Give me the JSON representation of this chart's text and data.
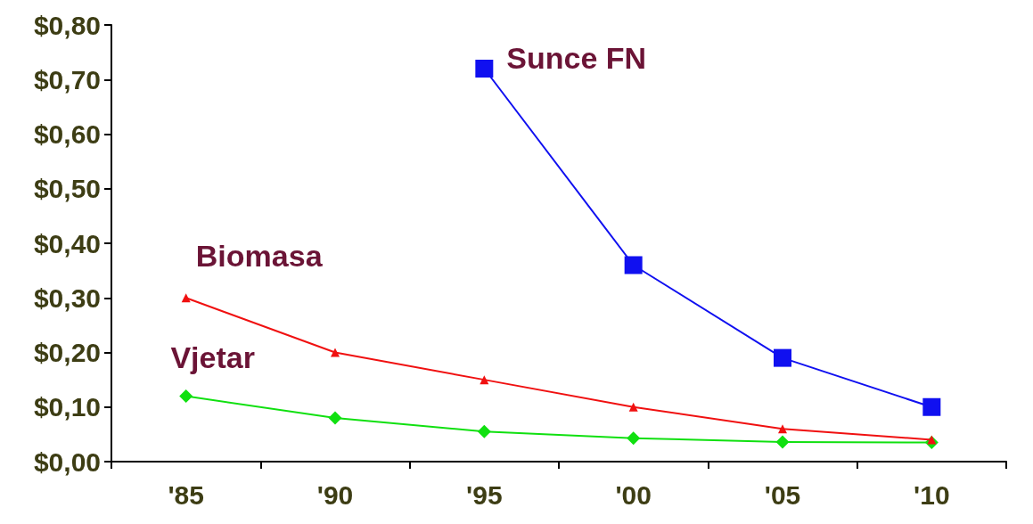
{
  "chart_data": {
    "type": "line",
    "categories": [
      "'85",
      "'90",
      "'95",
      "'00",
      "'05",
      "'10"
    ],
    "series": [
      {
        "name": "Sunce FN",
        "color": "#1010f0",
        "marker": "square",
        "values": [
          null,
          null,
          0.72,
          0.36,
          0.19,
          0.1
        ]
      },
      {
        "name": "Biomasa",
        "color": "#f01010",
        "marker": "triangle",
        "values": [
          0.3,
          0.2,
          0.15,
          0.1,
          0.06,
          0.04
        ]
      },
      {
        "name": "Vjetar",
        "color": "#10e010",
        "marker": "diamond",
        "values": [
          0.12,
          0.08,
          0.055,
          0.043,
          0.036,
          0.035
        ]
      }
    ],
    "ylim": [
      0,
      0.8
    ],
    "yticks": [
      {
        "value": 0,
        "label": "$0,00"
      },
      {
        "value": 0.1,
        "label": "$0,10"
      },
      {
        "value": 0.2,
        "label": "$0,20"
      },
      {
        "value": 0.3,
        "label": "$0,30"
      },
      {
        "value": 0.4,
        "label": "$0,40"
      },
      {
        "value": 0.5,
        "label": "$0,50"
      },
      {
        "value": 0.6,
        "label": "$0,60"
      },
      {
        "value": 0.7,
        "label": "$0,70"
      },
      {
        "value": 0.8,
        "label": "$0,80"
      }
    ],
    "grid": false,
    "legend": false,
    "line_style": "solid"
  }
}
